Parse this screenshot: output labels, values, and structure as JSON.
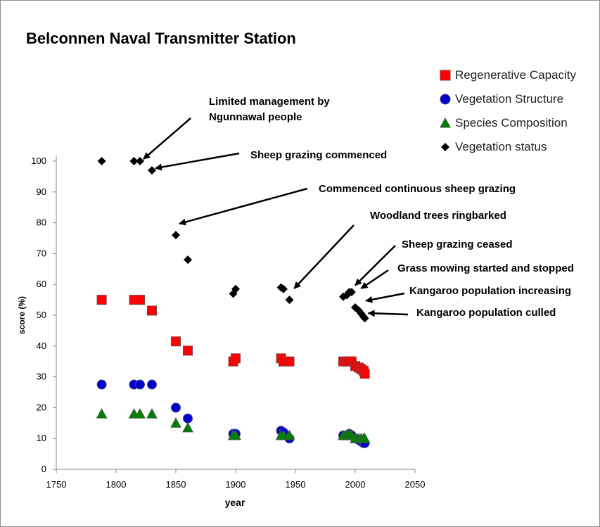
{
  "chart_data": {
    "type": "scatter",
    "title": "Belconnen Naval Transmitter Station",
    "xlabel": "year",
    "ylabel": "score  (%)",
    "xlim": [
      1750,
      2050
    ],
    "ylim": [
      0,
      100
    ],
    "xticks": [
      1750,
      1800,
      1850,
      1900,
      1950,
      2000,
      2050
    ],
    "yticks": [
      0,
      10,
      20,
      30,
      40,
      50,
      60,
      70,
      80,
      90,
      100
    ],
    "grid": false,
    "legend_position": "top-right",
    "series": [
      {
        "name": "Regenerative Capacity",
        "marker": "square",
        "color": "#ff0000",
        "points": [
          [
            1788,
            55
          ],
          [
            1815,
            55
          ],
          [
            1820,
            55
          ],
          [
            1830,
            51.5
          ],
          [
            1850,
            41.5
          ],
          [
            1860,
            38.5
          ],
          [
            1898,
            35
          ],
          [
            1900,
            36
          ],
          [
            1938,
            36
          ],
          [
            1940,
            35
          ],
          [
            1945,
            35
          ],
          [
            1990,
            35
          ],
          [
            1993,
            35
          ],
          [
            1995,
            35
          ],
          [
            1997,
            35
          ],
          [
            2000,
            33.5
          ],
          [
            2003,
            33
          ],
          [
            2005,
            32.5
          ],
          [
            2007,
            32
          ],
          [
            2008,
            31
          ]
        ]
      },
      {
        "name": "Vegetation Structure",
        "marker": "circle",
        "color": "#0000cc",
        "points": [
          [
            1788,
            27.5
          ],
          [
            1815,
            27.5
          ],
          [
            1820,
            27.5
          ],
          [
            1830,
            27.5
          ],
          [
            1850,
            20
          ],
          [
            1860,
            16.5
          ],
          [
            1898,
            11.5
          ],
          [
            1900,
            11.5
          ],
          [
            1938,
            12.5
          ],
          [
            1940,
            12
          ],
          [
            1945,
            10
          ],
          [
            1990,
            11
          ],
          [
            1993,
            11
          ],
          [
            1995,
            11.5
          ],
          [
            1997,
            11
          ],
          [
            2000,
            10
          ],
          [
            2003,
            9.5
          ],
          [
            2005,
            9
          ],
          [
            2007,
            8.5
          ],
          [
            2008,
            8.5
          ]
        ]
      },
      {
        "name": "Species Composition",
        "marker": "triangle",
        "color": "#008000",
        "points": [
          [
            1788,
            18
          ],
          [
            1815,
            18
          ],
          [
            1820,
            18
          ],
          [
            1830,
            18
          ],
          [
            1850,
            15
          ],
          [
            1860,
            13.5
          ],
          [
            1898,
            11
          ],
          [
            1900,
            11
          ],
          [
            1938,
            11
          ],
          [
            1940,
            11
          ],
          [
            1945,
            11
          ],
          [
            1990,
            11
          ],
          [
            1993,
            11
          ],
          [
            1995,
            11.5
          ],
          [
            1997,
            11
          ],
          [
            2000,
            10
          ],
          [
            2003,
            10
          ],
          [
            2005,
            10
          ],
          [
            2007,
            10
          ],
          [
            2008,
            10
          ]
        ]
      },
      {
        "name": "Vegetation status",
        "marker": "diamond",
        "color": "#000000",
        "points": [
          [
            1788,
            100
          ],
          [
            1815,
            100
          ],
          [
            1820,
            100
          ],
          [
            1830,
            97
          ],
          [
            1850,
            76
          ],
          [
            1860,
            68
          ],
          [
            1898,
            57
          ],
          [
            1900,
            58.5
          ],
          [
            1938,
            59
          ],
          [
            1940,
            58.5
          ],
          [
            1945,
            55
          ],
          [
            1990,
            56
          ],
          [
            1993,
            56.5
          ],
          [
            1995,
            57.5
          ],
          [
            1997,
            57.5
          ],
          [
            2000,
            52.5
          ],
          [
            2003,
            51.5
          ],
          [
            2005,
            50.5
          ],
          [
            2007,
            49.5
          ],
          [
            2008,
            49
          ]
        ]
      }
    ],
    "annotations": [
      {
        "lines": [
          "Limited management by",
          "Ngunnawal people"
        ],
        "target": [
          1820,
          100
        ]
      },
      {
        "lines": [
          "Sheep grazing commenced"
        ],
        "target": [
          1830,
          97
        ]
      },
      {
        "lines": [
          "Commenced continuous sheep grazing"
        ],
        "target": [
          1850,
          79
        ]
      },
      {
        "lines": [
          "Woodland trees ringbarked"
        ],
        "target": [
          1946,
          58
        ]
      },
      {
        "lines": [
          "Sheep grazing ceased"
        ],
        "target": [
          1997,
          59
        ]
      },
      {
        "lines": [
          "Grass mowing started and stopped"
        ],
        "target": [
          2002,
          58
        ]
      },
      {
        "lines": [
          "Kangaroo population increasing"
        ],
        "target": [
          2006,
          54
        ]
      },
      {
        "lines": [
          "Kangaroo population culled"
        ],
        "target": [
          2008,
          50
        ]
      }
    ]
  }
}
